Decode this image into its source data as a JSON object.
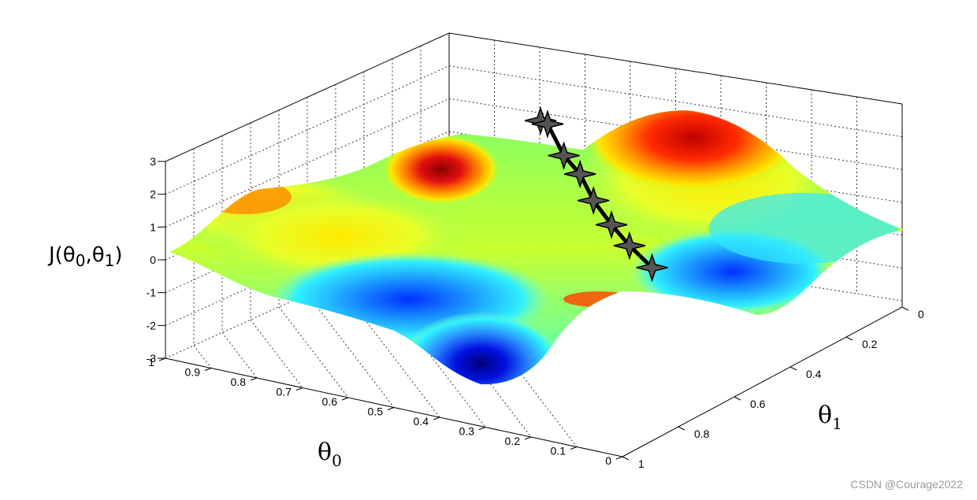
{
  "chart_data": {
    "type": "surface",
    "zlabel": "J(θ0,θ1)",
    "xlabel": "θ0",
    "ylabel": "θ1",
    "x_ticks": [
      "1",
      "0.9",
      "0.8",
      "0.7",
      "0.6",
      "0.5",
      "0.4",
      "0.3",
      "0.2",
      "0.1",
      "0"
    ],
    "y_ticks": [
      "0",
      "0.2",
      "0.4",
      "0.6",
      "0.8",
      "1"
    ],
    "z_ticks": [
      "3",
      "2",
      "1",
      "0",
      "-1",
      "-2",
      "-3"
    ],
    "xlim": [
      0,
      1
    ],
    "ylim": [
      0,
      1
    ],
    "zlim": [
      -3,
      3
    ],
    "grid": true,
    "colormap": "jet",
    "path_points": [
      {
        "theta0": 0.62,
        "theta1": 0.28,
        "J": 2.1
      },
      {
        "theta0": 0.58,
        "theta1": 0.32,
        "J": 2.3
      },
      {
        "theta0": 0.52,
        "theta1": 0.36,
        "J": 1.7
      },
      {
        "theta0": 0.46,
        "theta1": 0.4,
        "J": 1.5
      },
      {
        "theta0": 0.4,
        "theta1": 0.45,
        "J": 1.1
      },
      {
        "theta0": 0.33,
        "theta1": 0.5,
        "J": 0.8
      },
      {
        "theta0": 0.26,
        "theta1": 0.55,
        "J": 0.6
      },
      {
        "theta0": 0.18,
        "theta1": 0.6,
        "J": 0.4
      }
    ]
  },
  "axis_labels": {
    "z_main": "J(θ",
    "z_sub1": "0",
    "z_mid": ",θ",
    "z_sub2": "1",
    "z_end": ")",
    "x_main": "θ",
    "x_sub": "0",
    "y_main": "θ",
    "y_sub": "1"
  },
  "watermark": "CSDN @Courage2022",
  "colors": {
    "path": "#000000",
    "star_fill": "#555555"
  }
}
